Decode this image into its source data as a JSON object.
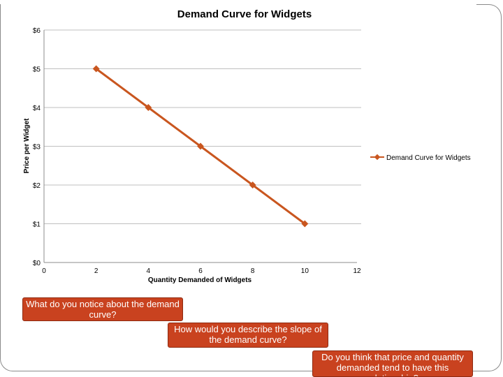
{
  "chart_data": {
    "type": "line",
    "title": "Demand Curve for Widgets",
    "xlabel": "Quantity Demanded of Widgets",
    "ylabel": "Price per Widget",
    "x": [
      2,
      4,
      6,
      8,
      10
    ],
    "series": [
      {
        "name": "Demand Curve for Widgets",
        "values": [
          5,
          4,
          3,
          2,
          1
        ]
      }
    ],
    "xlim": [
      0,
      12
    ],
    "ylim": [
      0,
      6
    ],
    "xticks": [
      0,
      2,
      4,
      6,
      8,
      10,
      12
    ],
    "yticks": [
      0,
      1,
      2,
      3,
      4,
      5,
      6
    ],
    "ytick_labels": [
      "$0",
      "$1",
      "$2",
      "$3",
      "$4",
      "$5",
      "$6"
    ],
    "grid": "horizontal",
    "legend": "right",
    "line_color": "#c9561f"
  },
  "notes": [
    "What do you notice about the demand curve?",
    "How would you describe the slope of the demand curve?",
    "Do you think that price and quantity demanded tend to have this relationship?"
  ]
}
